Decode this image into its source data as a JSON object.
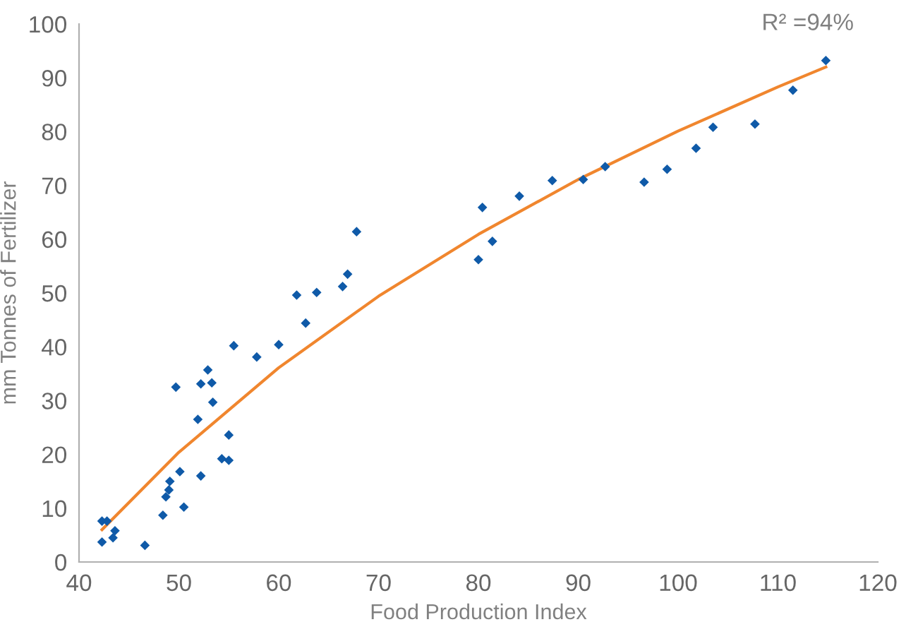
{
  "chart_data": {
    "type": "scatter",
    "xlabel": "Food Production Index",
    "ylabel": "mm Tonnes of Fertilizer",
    "annotations": [
      "R² =94%"
    ],
    "xlim": [
      40,
      120
    ],
    "xticks": [
      40,
      50,
      60,
      70,
      80,
      90,
      100,
      110,
      120
    ],
    "ylim": [
      0,
      100
    ],
    "yticks": [
      0,
      10,
      20,
      30,
      40,
      50,
      60,
      70,
      80,
      90,
      100
    ],
    "grid": false,
    "legend": false,
    "marker": "diamond",
    "series": [
      {
        "color": "#0f5aa8",
        "x": [
          42.3,
          42.8,
          43.6,
          43.4,
          42.3,
          46.6,
          48.4,
          48.7,
          49.0,
          49.1,
          50.1,
          50.5,
          49.7,
          52.2,
          51.9,
          52.2,
          52.9,
          53.3,
          53.4,
          55.0,
          54.3,
          55.0,
          55.5,
          57.8,
          60.0,
          62.7,
          61.8,
          63.8,
          66.4,
          66.9,
          67.8,
          80.0,
          80.4,
          81.4,
          84.1,
          87.4,
          90.5,
          92.7,
          96.6,
          98.9,
          101.8,
          103.5,
          107.7,
          111.5,
          114.8
        ],
        "values": [
          7.6,
          7.6,
          5.8,
          4.5,
          3.7,
          3.1,
          8.7,
          12.1,
          13.4,
          15.0,
          16.8,
          10.2,
          32.5,
          16.0,
          26.5,
          33.1,
          35.7,
          33.3,
          29.7,
          23.6,
          19.2,
          18.9,
          40.2,
          38.1,
          40.4,
          44.4,
          49.6,
          50.1,
          51.2,
          53.5,
          61.4,
          56.2,
          65.9,
          59.6,
          68.0,
          70.9,
          71.1,
          73.5,
          70.6,
          73.0,
          76.9,
          80.8,
          81.4,
          87.7,
          93.2
        ]
      },
      {
        "type": "line",
        "color": "#f0862e",
        "marker": "none",
        "line_style": "solid",
        "x": [
          42.3,
          50,
          60,
          70,
          80,
          90,
          100,
          110,
          114.8
        ],
        "values": [
          6.0,
          20.4,
          36.1,
          49.4,
          60.9,
          71.1,
          80.1,
          88.3,
          92.0
        ]
      }
    ]
  }
}
